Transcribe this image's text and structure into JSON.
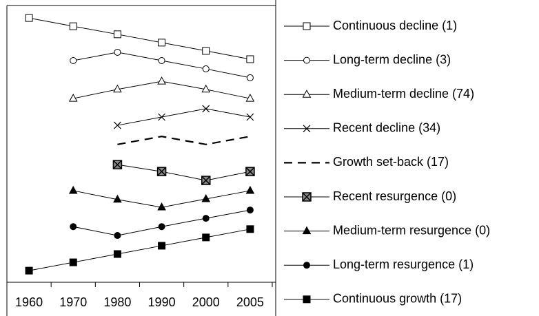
{
  "chart_data": {
    "type": "line",
    "categories": [
      "1960",
      "1970",
      "1980",
      "1990",
      "2000",
      "2005"
    ],
    "ylim": [
      0,
      100
    ],
    "legend": "right",
    "series": [
      {
        "name": "Continuous decline (1)",
        "color": "#000000",
        "marker": "square-open",
        "values": [
          95.5,
          92.5,
          89.6,
          86.6,
          83.6,
          80.6
        ]
      },
      {
        "name": "Long-term decline (3)",
        "color": "#000000",
        "marker": "circle-open",
        "values": [
          null,
          80.1,
          83.1,
          80.1,
          77.1,
          73.9
        ]
      },
      {
        "name": "Medium-term decline (74)",
        "color": "#000000",
        "marker": "triangle-open",
        "values": [
          null,
          66.4,
          69.7,
          72.6,
          69.7,
          66.4
        ]
      },
      {
        "name": "Recent decline (34)",
        "color": "#000000",
        "marker": "x",
        "values": [
          null,
          null,
          56.7,
          59.7,
          62.7,
          59.7
        ]
      },
      {
        "name": "Growth set-back (17)",
        "color": "#000000",
        "marker": "none",
        "dashed": true,
        "values": [
          null,
          null,
          49.8,
          52.7,
          49.8,
          52.7
        ]
      },
      {
        "name": "Recent resurgence (0)",
        "color": "#000000",
        "marker": "square-x",
        "values": [
          null,
          null,
          42.5,
          40.0,
          36.8,
          40.0
        ]
      },
      {
        "name": "Medium-term resurgence (0)",
        "color": "#000000",
        "marker": "triangle-filled",
        "values": [
          null,
          33.1,
          29.9,
          27.1,
          30.1,
          33.1
        ]
      },
      {
        "name": "Long-term resurgence (1)",
        "color": "#000000",
        "marker": "circle-filled",
        "values": [
          null,
          20.1,
          16.9,
          20.1,
          23.1,
          26.1
        ]
      },
      {
        "name": "Continuous growth (17)",
        "color": "#000000",
        "marker": "square-filled",
        "values": [
          4.2,
          7.2,
          10.2,
          13.2,
          16.2,
          19.2
        ]
      }
    ]
  }
}
